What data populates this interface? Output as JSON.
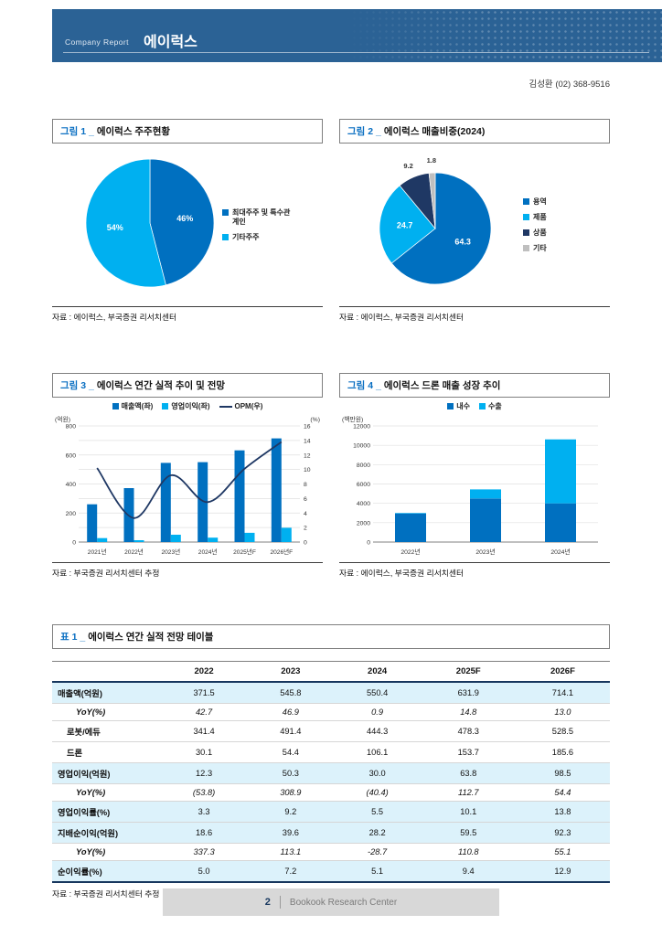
{
  "header": {
    "kicker": "Company Report",
    "title": "에이럭스"
  },
  "analyst": "김성환 (02) 368-9516",
  "colors": {
    "primary": "#0070C0",
    "secondary": "#00B0F0",
    "navy": "#1F3864",
    "gray": "#BFBFBF",
    "band": "#2B6295",
    "tint": "#DCF2FB"
  },
  "figures": {
    "fig1": {
      "title_prefix": "그림 1 _",
      "title": "에이럭스 주주현황",
      "source": "자료 : 에이럭스, 부국증권 리서치센터"
    },
    "fig2": {
      "title_prefix": "그림 2 _",
      "title": "에이럭스 매출비중(2024)",
      "source": "자료 : 에이럭스, 부국증권 리서치센터"
    },
    "fig3": {
      "title_prefix": "그림 3 _",
      "title": "에이럭스 연간 실적 추이 및 전망",
      "source": "자료 : 부국증권 리서치센터 추정"
    },
    "fig4": {
      "title_prefix": "그림 4 _",
      "title": "에이럭스 드론 매출 성장 추이",
      "source": "자료 : 에이럭스, 부국증권 리서치센터"
    }
  },
  "chart_data": [
    {
      "type": "pie",
      "target": "fig1",
      "title": "에이럭스 주주현황",
      "legend_position": "right",
      "slices": [
        {
          "label": "최대주주 및 특수관계인",
          "value": 46,
          "display": "46%",
          "color": "#0070C0"
        },
        {
          "label": "기타주주",
          "value": 54,
          "display": "54%",
          "color": "#00B0F0"
        }
      ]
    },
    {
      "type": "pie",
      "target": "fig2",
      "title": "에이럭스 매출비중(2024)",
      "legend_position": "right",
      "slices": [
        {
          "label": "용역",
          "value": 64.3,
          "display": "64.3",
          "color": "#0070C0"
        },
        {
          "label": "제품",
          "value": 24.7,
          "display": "24.7",
          "color": "#00B0F0"
        },
        {
          "label": "상품",
          "value": 9.2,
          "display": "9.2",
          "color": "#1F3864"
        },
        {
          "label": "기타",
          "value": 1.8,
          "display": "1.8",
          "color": "#BFBFBF"
        }
      ]
    },
    {
      "type": "bar-line",
      "target": "fig3",
      "title": "에이럭스 연간 실적 추이 및 전망",
      "categories": [
        "2021년",
        "2022년",
        "2023년",
        "2024년",
        "2025년F",
        "2026년F"
      ],
      "series": [
        {
          "name": "매출액(좌)",
          "kind": "bar",
          "axis": "left",
          "color": "#0070C0",
          "values": [
            260,
            371.5,
            545.8,
            550.4,
            631.9,
            714.1
          ]
        },
        {
          "name": "영업이익(좌)",
          "kind": "bar",
          "axis": "left",
          "color": "#00B0F0",
          "values": [
            27,
            12.3,
            50.3,
            30.0,
            63.8,
            98.5
          ]
        },
        {
          "name": "OPM(우)",
          "kind": "line",
          "axis": "right",
          "color": "#1F3864",
          "values": [
            10.2,
            3.3,
            9.2,
            5.5,
            10.1,
            13.8
          ]
        }
      ],
      "y_left": {
        "label": "(억원)",
        "min": 0,
        "max": 800,
        "step": 200
      },
      "y_right": {
        "label": "(%)",
        "min": 0,
        "max": 16,
        "step": 2
      },
      "grid": true,
      "legend_position": "top"
    },
    {
      "type": "stacked-bar",
      "target": "fig4",
      "title": "에이럭스 드론 매출 성장 추이",
      "categories": [
        "2022년",
        "2023년",
        "2024년"
      ],
      "series": [
        {
          "name": "내수",
          "color": "#0070C0",
          "values": [
            2950,
            4500,
            4000
          ]
        },
        {
          "name": "수출",
          "color": "#00B0F0",
          "values": [
            60,
            940,
            6610
          ]
        }
      ],
      "y": {
        "label": "(백만원)",
        "min": 0,
        "max": 12000,
        "step": 2000
      },
      "grid": true,
      "legend_position": "top"
    }
  ],
  "table": {
    "title_prefix": "표 1 _",
    "title": "에이럭스 연간 실적 전망 테이블",
    "columns": [
      "",
      "2022",
      "2023",
      "2024",
      "2025F",
      "2026F"
    ],
    "rows": [
      {
        "label": "매출액(억원)",
        "style": "main",
        "values": [
          "371.5",
          "545.8",
          "550.4",
          "631.9",
          "714.1"
        ]
      },
      {
        "label": "YoY(%)",
        "style": "sub",
        "values": [
          "42.7",
          "46.9",
          "0.9",
          "14.8",
          "13.0"
        ]
      },
      {
        "label": "로봇/에듀",
        "style": "item",
        "values": [
          "341.4",
          "491.4",
          "444.3",
          "478.3",
          "528.5"
        ]
      },
      {
        "label": "드론",
        "style": "item",
        "values": [
          "30.1",
          "54.4",
          "106.1",
          "153.7",
          "185.6"
        ]
      },
      {
        "label": "영업이익(억원)",
        "style": "main",
        "values": [
          "12.3",
          "50.3",
          "30.0",
          "63.8",
          "98.5"
        ]
      },
      {
        "label": "YoY(%)",
        "style": "sub",
        "values": [
          "(53.8)",
          "308.9",
          "(40.4)",
          "112.7",
          "54.4"
        ]
      },
      {
        "label": "영업이익률(%)",
        "style": "main",
        "values": [
          "3.3",
          "9.2",
          "5.5",
          "10.1",
          "13.8"
        ]
      },
      {
        "label": "지배순이익(억원)",
        "style": "main",
        "values": [
          "18.6",
          "39.6",
          "28.2",
          "59.5",
          "92.3"
        ]
      },
      {
        "label": "YoY(%)",
        "style": "sub",
        "values": [
          "337.3",
          "113.1",
          "-28.7",
          "110.8",
          "55.1"
        ]
      },
      {
        "label": "순이익률(%)",
        "style": "main",
        "values": [
          "5.0",
          "7.2",
          "5.1",
          "9.4",
          "12.9"
        ]
      }
    ],
    "source": "자료 : 부국증권 리서치센터 추정"
  },
  "footer": {
    "page": "2",
    "brand": "Bookook Research Center"
  }
}
